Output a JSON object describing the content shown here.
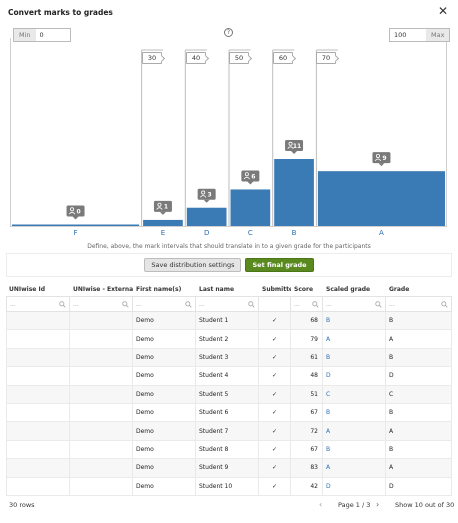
{
  "window": {
    "title": "Convert marks to grades"
  },
  "bounds": {
    "min_label": "Min",
    "min_value": "0",
    "max_label": "Max",
    "max_value": "100"
  },
  "help_symbol": "?",
  "thresholds": [
    "30",
    "40",
    "50",
    "60",
    "70"
  ],
  "chart_data": {
    "type": "bar",
    "categories": [
      "F",
      "E",
      "D",
      "C",
      "B",
      "A"
    ],
    "x_range": [
      0,
      100
    ],
    "boundaries": [
      0,
      30,
      40,
      50,
      60,
      70,
      100
    ],
    "values": [
      0,
      1,
      3,
      6,
      11,
      9
    ],
    "bar_color": "#3b7bb5",
    "badge_color": "#7a7a7a"
  },
  "description": "Define, above, the mark intervals that should translate in to a given grade for the participants",
  "buttons": {
    "save": "Save distribution settings",
    "final": "Set final grade"
  },
  "table": {
    "columns": [
      "UNIwise Id",
      "UNIwise - External user id",
      "First name(s)",
      "Last name",
      "Submitted",
      "Score",
      "Scaled grade",
      "Grade"
    ],
    "filter_placeholder": "...",
    "check_symbol": "✓",
    "rows": [
      {
        "first": "Demo",
        "last": "Student 1",
        "score": "68",
        "scaled": "B",
        "grade": "B"
      },
      {
        "first": "Demo",
        "last": "Student 2",
        "score": "79",
        "scaled": "A",
        "grade": "A"
      },
      {
        "first": "Demo",
        "last": "Student 3",
        "score": "61",
        "scaled": "B",
        "grade": "B"
      },
      {
        "first": "Demo",
        "last": "Student 4",
        "score": "48",
        "scaled": "D",
        "grade": "D"
      },
      {
        "first": "Demo",
        "last": "Student 5",
        "score": "51",
        "scaled": "C",
        "grade": "C"
      },
      {
        "first": "Demo",
        "last": "Student 6",
        "score": "67",
        "scaled": "B",
        "grade": "B"
      },
      {
        "first": "Demo",
        "last": "Student 7",
        "score": "72",
        "scaled": "A",
        "grade": "A"
      },
      {
        "first": "Demo",
        "last": "Student 8",
        "score": "67",
        "scaled": "B",
        "grade": "B"
      },
      {
        "first": "Demo",
        "last": "Student 9",
        "score": "83",
        "scaled": "A",
        "grade": "A"
      },
      {
        "first": "Demo",
        "last": "Student 10",
        "score": "42",
        "scaled": "D",
        "grade": "D"
      }
    ]
  },
  "footer": {
    "rows_count": "30 rows",
    "prev": "‹",
    "page": "Page 1 / 3",
    "next": "›",
    "show": "Show 10 out of 30"
  }
}
